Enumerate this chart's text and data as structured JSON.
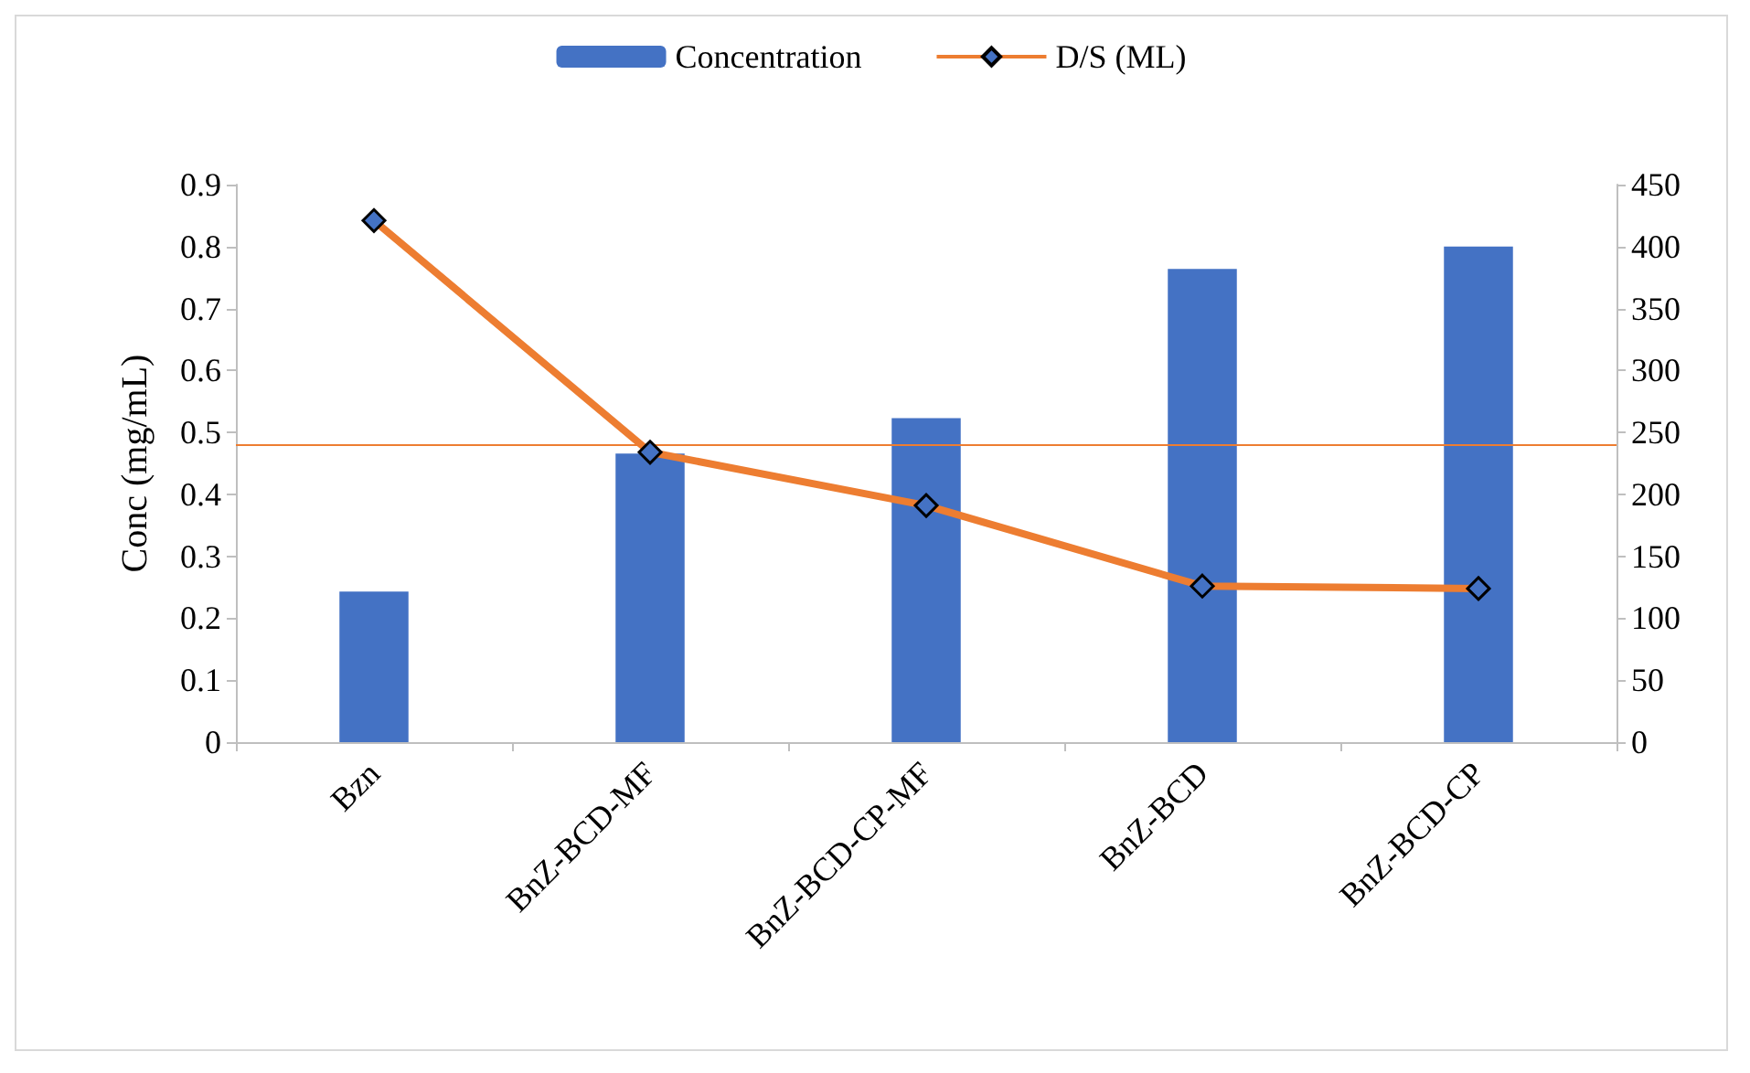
{
  "chart_data": {
    "type": "bar",
    "categories": [
      "Bzn",
      "BnZ-BCD-MF",
      "BnZ-BCD-CP-MF",
      "BnZ-BCD",
      "BnZ-BCD-CP"
    ],
    "ylabel": "Conc (mg/mL)",
    "series": [
      {
        "name": "Concentration",
        "color": "#4472c4",
        "values": [
          0.243,
          0.466,
          0.523,
          0.764,
          0.8
        ]
      },
      {
        "name": "D/S (ML)",
        "type": "line",
        "axis": "y2",
        "color": "#ed7d31",
        "marker": "diamond",
        "values": [
          421,
          234,
          191,
          126,
          124
        ]
      }
    ],
    "ylim": [
      0,
      0.9
    ],
    "yticks": [
      0,
      0.1,
      0.2,
      0.3,
      0.4,
      0.5,
      0.6,
      0.7,
      0.8,
      0.9
    ],
    "y2lim": [
      0,
      450
    ],
    "y2ticks": [
      0,
      50,
      100,
      150,
      200,
      250,
      300,
      350,
      400,
      450
    ],
    "ref_lines": [
      {
        "axis": "y",
        "value": 0.48,
        "color": "#ed7d31"
      }
    ],
    "grid": false,
    "legend": "top"
  }
}
